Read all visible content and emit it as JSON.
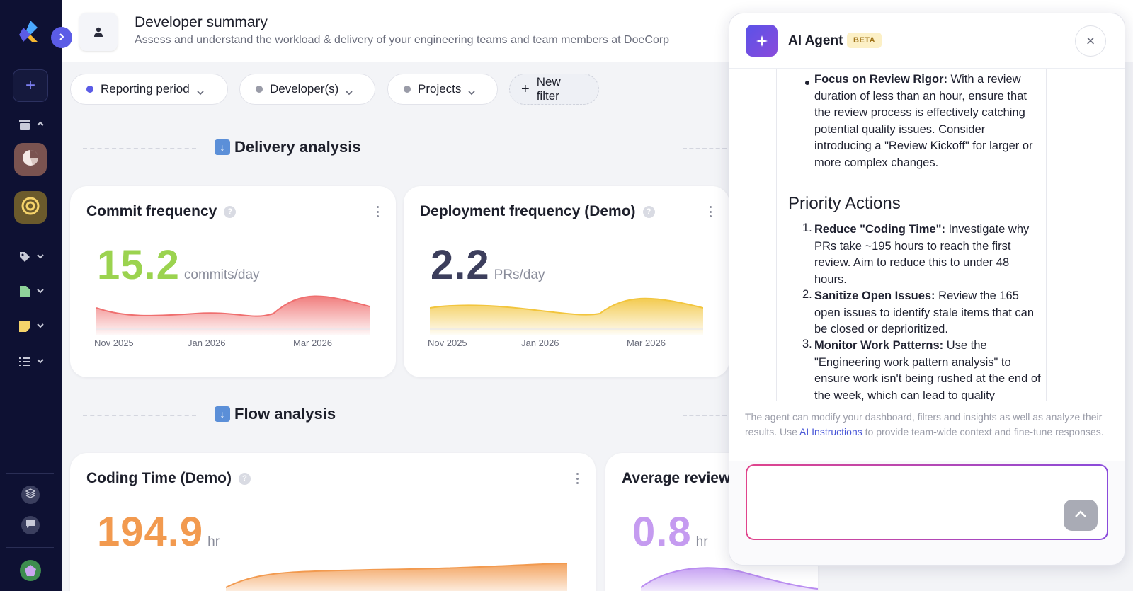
{
  "sidebar": {
    "expand_icon": "chevron-right-icon",
    "items": [
      {
        "name": "add",
        "icon": "plus-icon"
      },
      {
        "name": "inbox",
        "icon": "archive-icon"
      },
      {
        "name": "dashboards",
        "icon": "pie-chart-icon"
      },
      {
        "name": "goals",
        "icon": "target-icon"
      },
      {
        "name": "tags",
        "icon": "tag-icon"
      },
      {
        "name": "documents",
        "icon": "file-icon"
      },
      {
        "name": "notes",
        "icon": "note-icon"
      },
      {
        "name": "lists",
        "icon": "list-icon"
      },
      {
        "name": "layers",
        "icon": "layers-icon"
      },
      {
        "name": "chat",
        "icon": "chat-icon"
      }
    ]
  },
  "header": {
    "title": "Developer summary",
    "subtitle": "Assess and understand the workload & delivery of your engineering teams and team members at DoeCorp"
  },
  "filters": [
    {
      "label": "Reporting period",
      "dot_color": "#5b5ce6"
    },
    {
      "label": "Developer(s)",
      "dot_color": "#9a9ca8"
    },
    {
      "label": "Projects",
      "dot_color": "#9a9ca8"
    },
    {
      "label": "New filter"
    }
  ],
  "sections": {
    "delivery": "Delivery analysis",
    "flow": "Flow analysis"
  },
  "cards": {
    "commit": {
      "title": "Commit frequency",
      "value": "15.2",
      "unit": "commits/day",
      "color": "#9bd34f",
      "chart_color": "#ef6f6f",
      "x_labels": [
        "Nov 2025",
        "Jan 2026",
        "Mar 2026"
      ]
    },
    "deploy": {
      "title": "Deployment frequency (Demo)",
      "value": "2.2",
      "unit": "PRs/day",
      "color": "#3c3e5c",
      "chart_color": "#f2c53d",
      "x_labels": [
        "Nov 2025",
        "Jan 2026",
        "Mar 2026"
      ]
    },
    "coding": {
      "title": "Coding Time (Demo)",
      "value": "194.9",
      "unit": "hr",
      "color": "#f29a4f",
      "chart_color": "#f29a4f"
    },
    "review": {
      "title": "Average review",
      "value": "0.8",
      "unit": "hr",
      "color": "#c59bf0",
      "chart_color": "#b98cf0"
    }
  },
  "ai": {
    "title": "AI Agent",
    "badge": "BETA",
    "bullet_item": {
      "bold": "Focus on Review Rigor:",
      "text": " With a review duration of less than an hour, ensure that the review process is effectively catching potential quality issues. Consider introducing a \"Review Kickoff\" for larger or more complex changes."
    },
    "heading": "Priority Actions",
    "actions": [
      {
        "num": "1.",
        "bold": "Reduce \"Coding Time\":",
        "text": " Investigate why PRs take ~195 hours to reach the first review. Aim to reduce this to under 48 hours."
      },
      {
        "num": "2.",
        "bold": "Sanitize Open Issues:",
        "text": " Review the 165 open issues to identify stale items that can be closed or deprioritized."
      },
      {
        "num": "3.",
        "bold": "Monitor Work Patterns:",
        "text": " Use the \"Engineering work pattern analysis\" to ensure work isn't being rushed at the end of the week, which can lead to quality degradation."
      }
    ],
    "note_before": "The agent can modify your dashboard, filters and insights as well as analyze their results. Use ",
    "note_link": "AI Instructions",
    "note_after": " to provide team-wide context and fine-tune responses.",
    "input_value": ""
  }
}
